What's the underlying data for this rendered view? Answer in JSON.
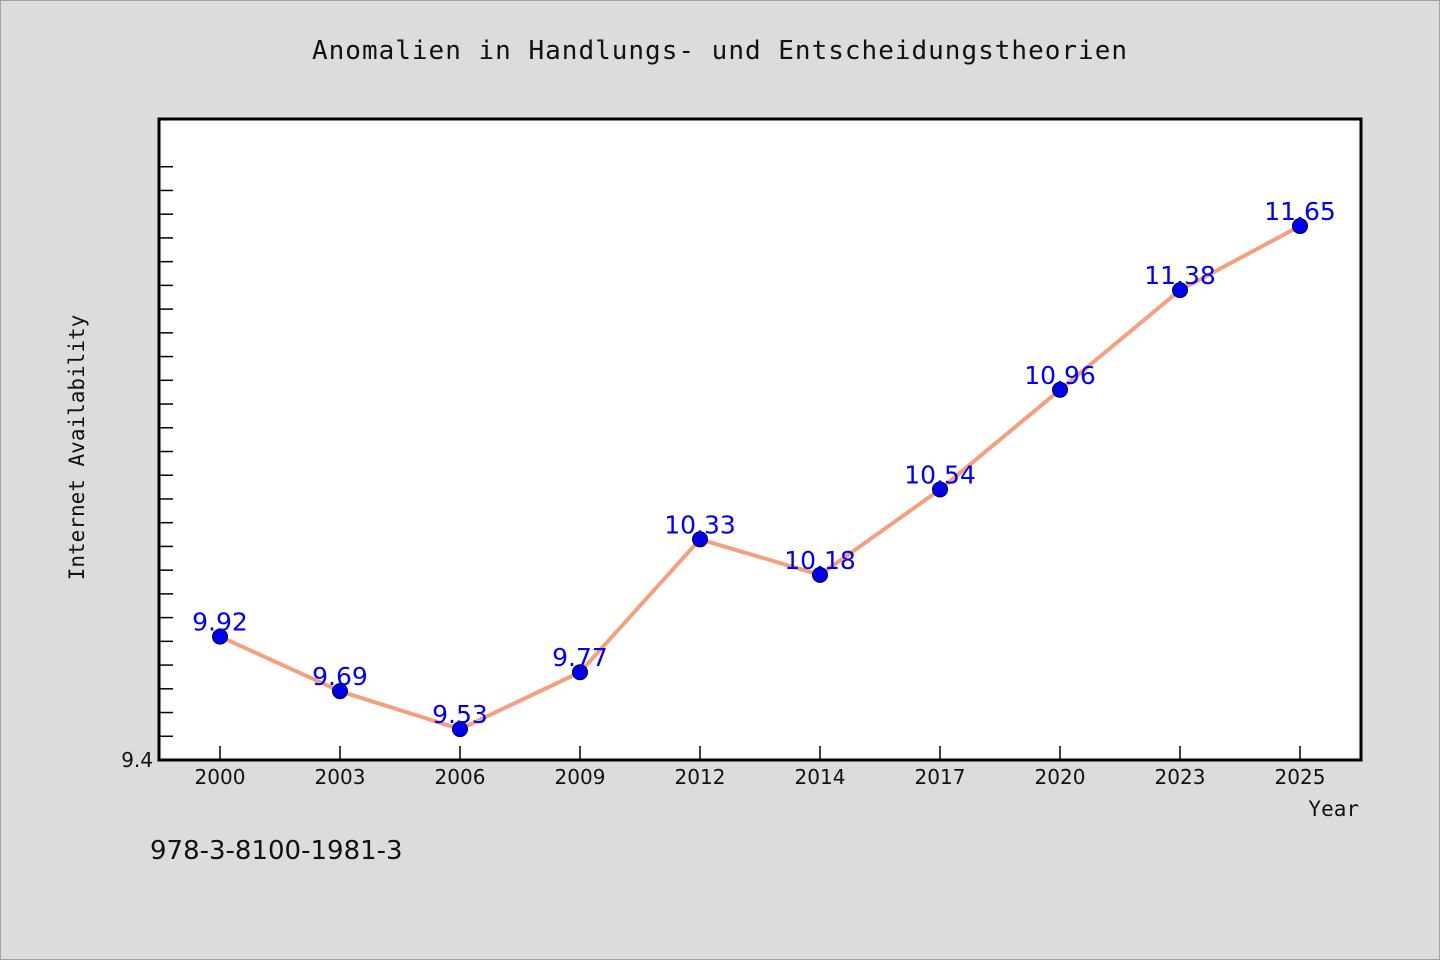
{
  "chart_data": {
    "type": "line",
    "title": "Anomalien in Handlungs- und Entscheidungstheorien",
    "xlabel": "Year",
    "ylabel": "Internet Availability",
    "categories": [
      "2000",
      "2003",
      "2006",
      "2009",
      "2012",
      "2014",
      "2017",
      "2020",
      "2023",
      "2025"
    ],
    "series": [
      {
        "values": [
          9.92,
          9.69,
          9.53,
          9.77,
          10.33,
          10.18,
          10.54,
          10.96,
          11.38,
          11.65
        ],
        "labels": [
          "9.92",
          "9.69",
          "9.53",
          "9.77",
          "10.33",
          "10.18",
          "10.54",
          "10.96",
          "11.38",
          "11.65"
        ]
      }
    ],
    "y_tick_label": "9.4",
    "ylim": [
      9.4,
      12.0
    ],
    "grid": false,
    "legend": "none",
    "colors": {
      "line": "#f4a07e",
      "marker": "#0000ee",
      "labels": "#0000ee",
      "background": "#dcdcdc",
      "plot_background": "#ffffff"
    }
  },
  "footer": {
    "isbn": "978-3-8100-1981-3"
  }
}
